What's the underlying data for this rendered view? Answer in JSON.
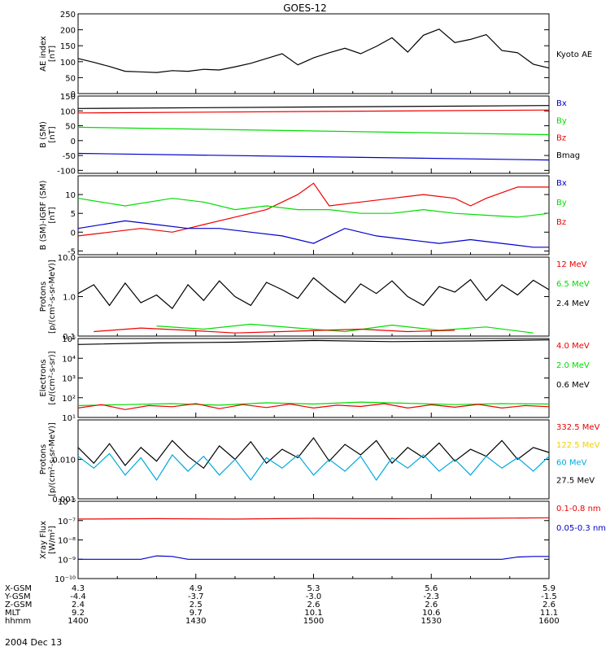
{
  "title": "GOES-12",
  "colors": {
    "black": "#000000",
    "red": "#ee0000",
    "green": "#00dd00",
    "blue": "#0000cc",
    "yellow": "#f0d000",
    "cyan": "#00aadd"
  },
  "chart_data": [
    {
      "type": "line",
      "panel": "ae",
      "ylabel": [
        "AE index",
        "[nT]"
      ],
      "yscale": "linear",
      "ylim": [
        0,
        250
      ],
      "yticks": [
        0,
        50,
        100,
        150,
        200,
        250
      ],
      "yticklabels": [
        "0",
        "50",
        "100",
        "150",
        "200",
        "250"
      ],
      "legend": [
        {
          "text": "Kyoto AE",
          "color": "black"
        }
      ],
      "series": [
        {
          "name": "Kyoto AE",
          "color": "black",
          "x": [
            0,
            2,
            4,
            6,
            8,
            10,
            12,
            14,
            16,
            18,
            20,
            22,
            24,
            26,
            28,
            30,
            32,
            34,
            36,
            38,
            40,
            42,
            44,
            46,
            48,
            50,
            52,
            54,
            56,
            58,
            60
          ],
          "y": [
            110,
            98,
            85,
            70,
            68,
            66,
            72,
            70,
            76,
            74,
            84,
            95,
            110,
            125,
            90,
            112,
            128,
            142,
            125,
            148,
            175,
            130,
            183,
            202,
            160,
            170,
            185,
            135,
            128,
            92,
            80
          ]
        }
      ]
    },
    {
      "type": "line",
      "panel": "b",
      "ylabel": [
        "B (SM)",
        "[nT]"
      ],
      "yscale": "linear",
      "ylim": [
        -110,
        150
      ],
      "yticks": [
        -100,
        -50,
        0,
        50,
        100,
        150
      ],
      "yticklabels": [
        "-100",
        "-50",
        "0",
        "50",
        "100",
        "150"
      ],
      "legend": [
        {
          "text": "Bx",
          "color": "blue"
        },
        {
          "text": "By",
          "color": "green"
        },
        {
          "text": "Bz",
          "color": "red"
        },
        {
          "text": "Bmag",
          "color": "black"
        }
      ],
      "series": [
        {
          "name": "Bmag",
          "color": "black",
          "x": [
            0,
            60
          ],
          "y": [
            108,
            118
          ]
        },
        {
          "name": "Bz",
          "color": "red",
          "x": [
            0,
            60
          ],
          "y": [
            93,
            103
          ]
        },
        {
          "name": "By",
          "color": "green",
          "x": [
            0,
            60
          ],
          "y": [
            45,
            20
          ]
        },
        {
          "name": "Bx",
          "color": "blue",
          "x": [
            0,
            60
          ],
          "y": [
            -43,
            -65
          ]
        }
      ]
    },
    {
      "type": "line",
      "panel": "bdiff",
      "ylabel": [
        "B (SM)-IGRF (SM)",
        "[nT]"
      ],
      "yscale": "linear",
      "ylim": [
        -6,
        15
      ],
      "yticks": [
        -5,
        0,
        5,
        10
      ],
      "yticklabels": [
        "-5",
        "0",
        "5",
        "10"
      ],
      "legend": [
        {
          "text": "Bx",
          "color": "blue"
        },
        {
          "text": "By",
          "color": "green"
        },
        {
          "text": "Bz",
          "color": "red"
        }
      ],
      "series": [
        {
          "name": "Bz",
          "color": "red",
          "x": [
            0,
            4,
            8,
            12,
            16,
            20,
            24,
            26,
            28,
            30,
            32,
            36,
            40,
            44,
            48,
            50,
            52,
            56,
            60
          ],
          "y": [
            -1,
            0,
            1,
            0,
            2,
            4,
            6,
            8,
            10,
            13,
            7,
            8,
            9,
            10,
            9,
            7,
            9,
            12,
            12
          ]
        },
        {
          "name": "By",
          "color": "green",
          "x": [
            0,
            6,
            12,
            16,
            20,
            24,
            28,
            32,
            36,
            40,
            44,
            48,
            52,
            56,
            60
          ],
          "y": [
            9,
            7,
            9,
            8,
            6,
            7,
            6,
            6,
            5,
            5,
            6,
            5,
            4.5,
            4,
            5
          ]
        },
        {
          "name": "Bx",
          "color": "blue",
          "x": [
            0,
            6,
            10,
            14,
            18,
            22,
            26,
            30,
            34,
            38,
            42,
            46,
            50,
            54,
            58,
            60
          ],
          "y": [
            1,
            3,
            2,
            1,
            1,
            0,
            -1,
            -3,
            1,
            -1,
            -2,
            -3,
            -2,
            -3,
            -4,
            -4
          ]
        }
      ]
    },
    {
      "type": "line",
      "panel": "protons_lo",
      "ylabel": [
        "Protons",
        "[p/(cm²-s-sr-MeV)]"
      ],
      "yscale": "log",
      "ylim": [
        0.1,
        10
      ],
      "yticks": [
        0.1,
        1,
        10
      ],
      "yticklabels": [
        "0.1",
        "1.0",
        "10.0"
      ],
      "legend": [
        {
          "text": "12 MeV",
          "color": "red"
        },
        {
          "text": "6.5 MeV",
          "color": "green"
        },
        {
          "text": "2.4 MeV",
          "color": "black"
        }
      ],
      "series": [
        {
          "name": "2.4 MeV",
          "color": "black",
          "x": [
            0,
            2,
            4,
            6,
            8,
            10,
            12,
            14,
            16,
            18,
            20,
            22,
            24,
            26,
            28,
            30,
            32,
            34,
            36,
            38,
            40,
            42,
            44,
            46,
            48,
            50,
            52,
            54,
            56,
            58,
            60
          ],
          "y": [
            1.2,
            2.0,
            0.6,
            2.2,
            0.7,
            1.1,
            0.5,
            2.0,
            0.8,
            2.5,
            1.0,
            0.6,
            2.3,
            1.5,
            0.9,
            3.0,
            1.4,
            0.7,
            2.1,
            1.2,
            2.5,
            1.0,
            0.6,
            1.8,
            1.3,
            2.7,
            0.8,
            2.0,
            1.1,
            2.6,
            1.5
          ]
        },
        {
          "name": "6.5 MeV",
          "color": "green",
          "x": [
            10,
            16,
            22,
            28,
            34,
            40,
            46,
            52,
            58
          ],
          "y": [
            0.18,
            0.15,
            0.2,
            0.16,
            0.13,
            0.19,
            0.14,
            0.17,
            0.12
          ]
        },
        {
          "name": "12 MeV",
          "color": "red",
          "x": [
            2,
            8,
            14,
            20,
            36,
            42,
            48
          ],
          "y": [
            0.13,
            0.16,
            0.14,
            0.12,
            0.15,
            0.13,
            0.14
          ]
        }
      ]
    },
    {
      "type": "line",
      "panel": "electrons",
      "ylabel": [
        "Electrons",
        "[e/(cm²-s-sr)]"
      ],
      "yscale": "log",
      "ylim": [
        10,
        100000
      ],
      "yticks": [
        10,
        100,
        1000,
        10000,
        100000
      ],
      "yticklabels": [
        "10¹",
        "10²",
        "10³",
        "10⁴",
        "10⁵"
      ],
      "legend": [
        {
          "text": "4.0 MeV",
          "color": "red"
        },
        {
          "text": "2.0 MeV",
          "color": "green"
        },
        {
          "text": "0.6 MeV",
          "color": "black"
        }
      ],
      "series": [
        {
          "name": "0.6 MeV",
          "color": "black",
          "x": [
            0,
            10,
            20,
            30,
            40,
            50,
            60
          ],
          "y": [
            50000,
            60000,
            65000,
            80000,
            70000,
            75000,
            85000
          ]
        },
        {
          "name": "2.0 MeV",
          "color": "green",
          "x": [
            0,
            6,
            12,
            18,
            24,
            30,
            36,
            42,
            48,
            54,
            60
          ],
          "y": [
            40,
            45,
            50,
            42,
            55,
            48,
            60,
            52,
            45,
            50,
            48
          ]
        },
        {
          "name": "4.0 MeV",
          "color": "red",
          "x": [
            0,
            3,
            6,
            9,
            12,
            15,
            18,
            21,
            24,
            27,
            30,
            33,
            36,
            39,
            42,
            45,
            48,
            51,
            54,
            57,
            60
          ],
          "y": [
            30,
            45,
            25,
            40,
            35,
            50,
            28,
            45,
            32,
            48,
            30,
            42,
            36,
            50,
            30,
            44,
            33,
            46,
            30,
            40,
            35
          ]
        }
      ]
    },
    {
      "type": "line",
      "panel": "protons_hi",
      "ylabel": [
        "Protons",
        "[p/(cm²-s-sr-MeV)]"
      ],
      "yscale": "log",
      "ylim": [
        0.001,
        0.1
      ],
      "yticks": [
        0.001,
        0.01
      ],
      "yticklabels": [
        "0.001",
        "0.010"
      ],
      "legend": [
        {
          "text": "332.5 MeV",
          "color": "red"
        },
        {
          "text": "122.5 MeV",
          "color": "yellow"
        },
        {
          "text": "60 MeV",
          "color": "cyan"
        },
        {
          "text": "27.5 MeV",
          "color": "black"
        }
      ],
      "series": [
        {
          "name": "27.5 MeV",
          "color": "black",
          "x": [
            0,
            2,
            4,
            6,
            8,
            10,
            12,
            14,
            16,
            18,
            20,
            22,
            24,
            26,
            28,
            30,
            32,
            34,
            36,
            38,
            40,
            42,
            44,
            46,
            48,
            50,
            52,
            54,
            56,
            58,
            60
          ],
          "y": [
            0.02,
            0.008,
            0.025,
            0.007,
            0.02,
            0.009,
            0.03,
            0.012,
            0.006,
            0.022,
            0.01,
            0.028,
            0.008,
            0.018,
            0.011,
            0.035,
            0.009,
            0.024,
            0.013,
            0.03,
            0.008,
            0.02,
            0.011,
            0.026,
            0.009,
            0.018,
            0.012,
            0.03,
            0.01,
            0.02,
            0.015
          ]
        },
        {
          "name": "60 MeV",
          "color": "cyan",
          "x": [
            0,
            2,
            4,
            6,
            8,
            10,
            12,
            14,
            16,
            18,
            20,
            22,
            24,
            26,
            28,
            30,
            32,
            34,
            36,
            38,
            40,
            42,
            44,
            46,
            48,
            50,
            52,
            54,
            56,
            58,
            60
          ],
          "y": [
            0.012,
            0.006,
            0.014,
            0.004,
            0.011,
            0.003,
            0.013,
            0.005,
            0.012,
            0.004,
            0.01,
            0.003,
            0.011,
            0.006,
            0.013,
            0.004,
            0.01,
            0.005,
            0.012,
            0.003,
            0.011,
            0.006,
            0.013,
            0.005,
            0.01,
            0.004,
            0.012,
            0.006,
            0.011,
            0.005,
            0.012
          ]
        }
      ]
    },
    {
      "type": "line",
      "panel": "xray",
      "ylabel": [
        "Xray Flux",
        "[W/m²]"
      ],
      "yscale": "log",
      "ylim": [
        1e-10,
        1e-06
      ],
      "yticks": [
        1e-10,
        1e-09,
        1e-08,
        1e-07,
        1e-06
      ],
      "yticklabels": [
        "10⁻¹⁰",
        "10⁻⁹",
        "10⁻⁸",
        "10⁻⁷",
        "10⁻⁶"
      ],
      "legend": [
        {
          "text": "0.1-0.8 nm",
          "color": "red"
        },
        {
          "text": "0.05-0.3 nm",
          "color": "blue"
        }
      ],
      "series": [
        {
          "name": "0.1-0.8 nm",
          "color": "red",
          "x": [
            0,
            10,
            20,
            30,
            40,
            50,
            60
          ],
          "y": [
            1.2e-07,
            1.25e-07,
            1.2e-07,
            1.3e-07,
            1.25e-07,
            1.3e-07,
            1.4e-07
          ]
        },
        {
          "name": "0.05-0.3 nm",
          "color": "blue",
          "x": [
            0,
            8,
            10,
            12,
            14,
            54,
            56,
            58,
            60
          ],
          "y": [
            1e-09,
            1e-09,
            1.5e-09,
            1.4e-09,
            1e-09,
            1e-09,
            1.3e-09,
            1.4e-09,
            1.4e-09
          ]
        }
      ]
    }
  ],
  "xaxis": {
    "ticks": [
      0,
      15,
      30,
      45,
      60
    ],
    "rows": [
      {
        "label": "X-GSM",
        "values": [
          "4.3",
          "4.9",
          "5.3",
          "5.6",
          "5.9"
        ]
      },
      {
        "label": "Y-GSM",
        "values": [
          "-4.4",
          "-3.7",
          "-3.0",
          "-2.3",
          "-1.5"
        ]
      },
      {
        "label": "Z-GSM",
        "values": [
          "2.4",
          "2.5",
          "2.6",
          "2.6",
          "2.6"
        ]
      },
      {
        "label": "MLT",
        "values": [
          "9.2",
          "9.7",
          "10.1",
          "10.6",
          "11.1"
        ]
      },
      {
        "label": "hhmm",
        "values": [
          "1400",
          "1430",
          "1500",
          "1530",
          "1600"
        ]
      }
    ],
    "date": "2004 Dec 13"
  }
}
